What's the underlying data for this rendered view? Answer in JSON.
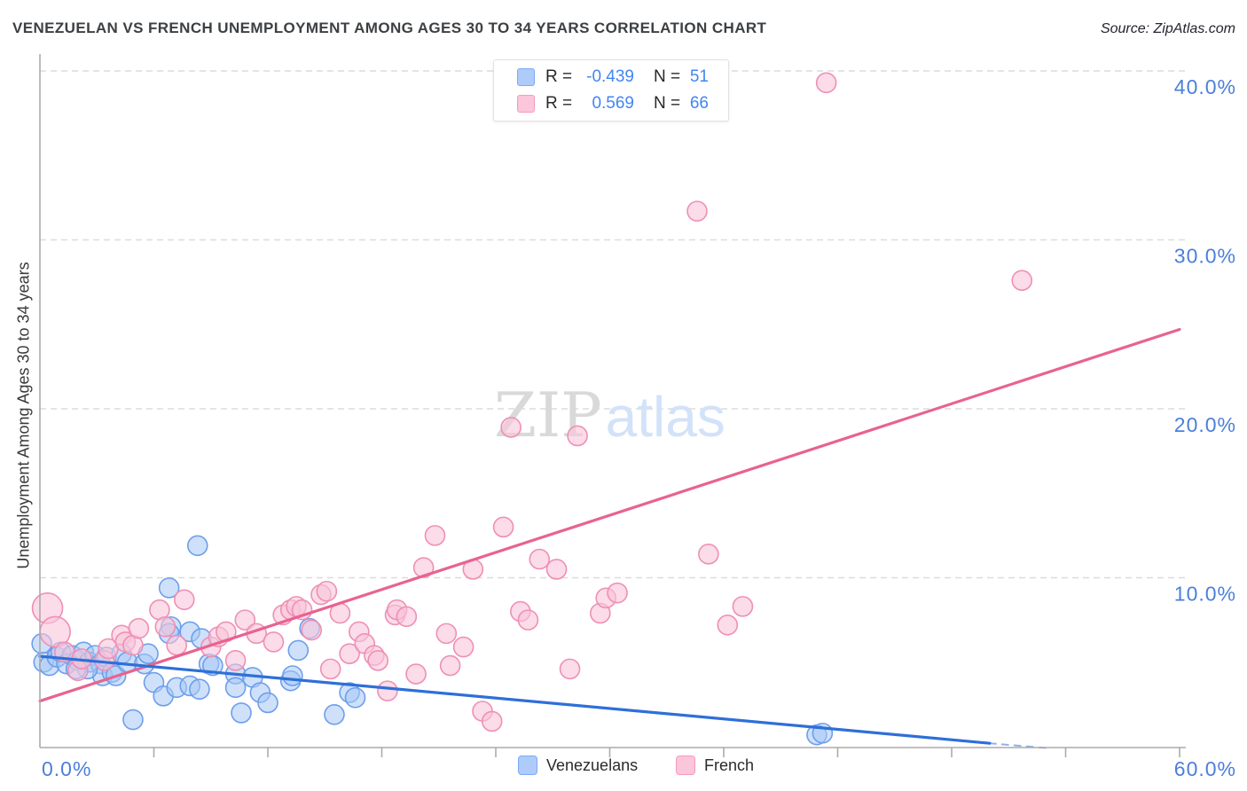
{
  "header": {
    "title": "VENEZUELAN VS FRENCH UNEMPLOYMENT AMONG AGES 30 TO 34 YEARS CORRELATION CHART",
    "source": "Source: ZipAtlas.com"
  },
  "y_axis": {
    "label": "Unemployment Among Ages 30 to 34 years",
    "ticks": [
      {
        "value": 10,
        "label": "10.0%"
      },
      {
        "value": 20,
        "label": "20.0%"
      },
      {
        "value": 30,
        "label": "30.0%"
      },
      {
        "value": 40,
        "label": "40.0%"
      }
    ]
  },
  "x_axis": {
    "min_label": "0.0%",
    "max_label": "60.0%",
    "tick_values": [
      6,
      12,
      18,
      24,
      30,
      36,
      42,
      48,
      54,
      60
    ]
  },
  "legend_box": {
    "rows": [
      {
        "series": "Venezuelans",
        "r_label": "R =",
        "r_value": "-0.439",
        "n_label": "N =",
        "n_value": "51"
      },
      {
        "series": "French",
        "r_label": "R =",
        "r_value": "0.569",
        "n_label": "N =",
        "n_value": "66"
      }
    ]
  },
  "bottom_legend": {
    "items": [
      {
        "label": "Venezuelans"
      },
      {
        "label": "French"
      }
    ]
  },
  "watermark": {
    "part1": "ZIP",
    "part2": "atlas"
  },
  "colors": {
    "accent_blue": "#4285f4",
    "axis_line": "#ababab",
    "gridline": "#dcdcdc",
    "tick_label_blue": "#4c7fd9",
    "venezuelans_fill": "#a8c8f5",
    "venezuelans_stroke": "#6d9eeb",
    "venezuelans_line": "#2e6fd8",
    "french_fill": "#f8c4d8",
    "french_stroke": "#ef8fb4",
    "french_line": "#e8638f",
    "watermark_gray": "#d9d9d9",
    "watermark_blue": "#d2e2f9"
  },
  "chart_data": {
    "type": "scatter",
    "title": "VENEZUELAN VS FRENCH UNEMPLOYMENT AMONG AGES 30 TO 34 YEARS CORRELATION CHART",
    "xlabel": "",
    "ylabel": "Unemployment Among Ages 30 to 34 years",
    "xlim": [
      0,
      60
    ],
    "ylim": [
      0,
      42
    ],
    "grid": "horizontal-dashed",
    "legend_position": "bottom-center",
    "units": "percent",
    "series": [
      {
        "name": "Venezuelans",
        "r": -0.439,
        "n": 51,
        "points": [
          [
            0.1,
            6.1
          ],
          [
            0.2,
            5.0
          ],
          [
            0.5,
            4.8
          ],
          [
            0.9,
            5.3
          ],
          [
            1.1,
            5.6
          ],
          [
            1.4,
            4.9
          ],
          [
            1.7,
            5.4
          ],
          [
            2.0,
            5.1
          ],
          [
            2.3,
            5.6
          ],
          [
            2.6,
            5.0
          ],
          [
            2.9,
            5.4
          ],
          [
            3.2,
            4.9
          ],
          [
            3.5,
            5.3
          ],
          [
            3.3,
            4.2
          ],
          [
            3.8,
            4.4
          ],
          [
            2.5,
            4.6
          ],
          [
            1.9,
            4.6
          ],
          [
            4.0,
            4.2
          ],
          [
            4.3,
            5.5
          ],
          [
            4.6,
            5.0
          ],
          [
            4.9,
            1.6
          ],
          [
            5.5,
            4.9
          ],
          [
            5.7,
            5.5
          ],
          [
            6.0,
            3.8
          ],
          [
            6.5,
            3.0
          ],
          [
            6.8,
            9.4
          ],
          [
            6.9,
            7.1
          ],
          [
            6.8,
            6.7
          ],
          [
            7.2,
            3.5
          ],
          [
            7.9,
            6.8
          ],
          [
            7.9,
            3.6
          ],
          [
            8.3,
            11.9
          ],
          [
            8.4,
            3.4
          ],
          [
            8.5,
            6.4
          ],
          [
            8.9,
            4.9
          ],
          [
            9.1,
            4.8
          ],
          [
            10.3,
            4.3
          ],
          [
            10.3,
            3.5
          ],
          [
            10.6,
            2.0
          ],
          [
            11.2,
            4.1
          ],
          [
            11.6,
            3.2
          ],
          [
            12.0,
            2.6
          ],
          [
            13.2,
            3.9
          ],
          [
            13.3,
            4.2
          ],
          [
            13.6,
            5.7
          ],
          [
            14.2,
            7.0
          ],
          [
            15.5,
            1.9
          ],
          [
            16.3,
            3.2
          ],
          [
            16.6,
            2.9
          ],
          [
            40.9,
            0.7
          ],
          [
            41.2,
            0.8
          ]
        ]
      },
      {
        "name": "French",
        "r": 0.569,
        "n": 66,
        "points": [
          [
            0.4,
            8.2,
            "lg"
          ],
          [
            0.8,
            6.8,
            "lg"
          ],
          [
            1.3,
            5.6
          ],
          [
            2.0,
            4.5
          ],
          [
            2.2,
            5.2
          ],
          [
            3.4,
            5.1
          ],
          [
            3.6,
            5.8
          ],
          [
            4.3,
            6.6
          ],
          [
            4.5,
            6.2
          ],
          [
            4.9,
            6.0
          ],
          [
            5.2,
            7.0
          ],
          [
            6.3,
            8.1
          ],
          [
            6.6,
            7.1
          ],
          [
            7.2,
            6.0
          ],
          [
            7.6,
            8.7
          ],
          [
            9.0,
            5.9
          ],
          [
            9.4,
            6.5
          ],
          [
            9.8,
            6.8
          ],
          [
            10.3,
            5.1
          ],
          [
            10.8,
            7.5
          ],
          [
            11.4,
            6.7
          ],
          [
            12.3,
            6.2
          ],
          [
            12.8,
            7.8
          ],
          [
            13.2,
            8.1
          ],
          [
            13.5,
            8.3
          ],
          [
            13.8,
            8.1
          ],
          [
            14.3,
            6.9
          ],
          [
            14.8,
            9.0
          ],
          [
            15.1,
            9.2
          ],
          [
            15.3,
            4.6
          ],
          [
            15.8,
            7.9
          ],
          [
            16.3,
            5.5
          ],
          [
            16.8,
            6.8
          ],
          [
            17.1,
            6.1
          ],
          [
            17.6,
            5.4
          ],
          [
            17.8,
            5.1
          ],
          [
            18.3,
            3.3
          ],
          [
            18.7,
            7.8
          ],
          [
            18.8,
            8.1
          ],
          [
            19.3,
            7.7
          ],
          [
            19.8,
            4.3
          ],
          [
            20.2,
            10.6
          ],
          [
            20.8,
            12.5
          ],
          [
            21.4,
            6.7
          ],
          [
            21.6,
            4.8
          ],
          [
            22.3,
            5.9
          ],
          [
            22.8,
            10.5
          ],
          [
            23.3,
            2.1
          ],
          [
            23.8,
            1.5
          ],
          [
            24.4,
            13.0
          ],
          [
            24.8,
            18.9
          ],
          [
            25.3,
            8.0
          ],
          [
            25.7,
            7.5
          ],
          [
            26.3,
            11.1
          ],
          [
            27.2,
            10.5
          ],
          [
            27.9,
            4.6
          ],
          [
            28.3,
            18.4
          ],
          [
            29.5,
            7.9
          ],
          [
            29.8,
            8.8
          ],
          [
            30.4,
            9.1
          ],
          [
            34.6,
            31.7
          ],
          [
            35.2,
            11.4
          ],
          [
            36.2,
            7.2
          ],
          [
            37.0,
            8.3
          ],
          [
            41.4,
            39.3
          ],
          [
            51.7,
            27.6
          ]
        ]
      }
    ],
    "trend_lines": [
      {
        "series": "French",
        "x1": 0,
        "y1": 2.7,
        "x2": 60,
        "y2": 24.7,
        "style": "solid"
      },
      {
        "series": "Venezuelans",
        "x1": 0,
        "y1": 5.35,
        "x2": 50,
        "y2": 0.2,
        "style": "solid"
      },
      {
        "series": "Venezuelans",
        "x1": 50,
        "y1": 0.2,
        "x2": 53.2,
        "y2": -0.1,
        "style": "dashed"
      }
    ]
  }
}
